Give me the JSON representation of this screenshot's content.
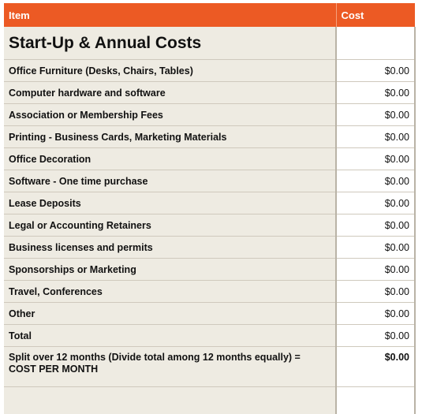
{
  "header": {
    "item_label": "Item",
    "cost_label": "Cost"
  },
  "title": "Start-Up & Annual Costs",
  "rows": [
    {
      "item": "Office Furniture (Desks, Chairs, Tables)",
      "cost": "$0.00"
    },
    {
      "item": "Computer hardware and software",
      "cost": "$0.00"
    },
    {
      "item": "Association or Membership Fees",
      "cost": "$0.00"
    },
    {
      "item": "Printing - Business Cards, Marketing Materials",
      "cost": "$0.00"
    },
    {
      "item": "Office Decoration",
      "cost": "$0.00"
    },
    {
      "item": "Software - One time purchase",
      "cost": "$0.00"
    },
    {
      "item": "Lease Deposits",
      "cost": "$0.00"
    },
    {
      "item": "Legal or Accounting Retainers",
      "cost": "$0.00"
    },
    {
      "item": "Business licenses and permits",
      "cost": "$0.00"
    },
    {
      "item": "Sponsorships or Marketing",
      "cost": "$0.00"
    },
    {
      "item": "Travel, Conferences",
      "cost": "$0.00"
    },
    {
      "item": "Other",
      "cost": "$0.00"
    },
    {
      "item": "Total",
      "cost": "$0.00"
    }
  ],
  "split": {
    "label": "Split over 12 months (Divide total among 12 months equally) = COST PER MONTH",
    "cost": "$0.00"
  },
  "colors": {
    "header_bg": "#ec5a24",
    "item_col_bg": "#eeebe2"
  }
}
